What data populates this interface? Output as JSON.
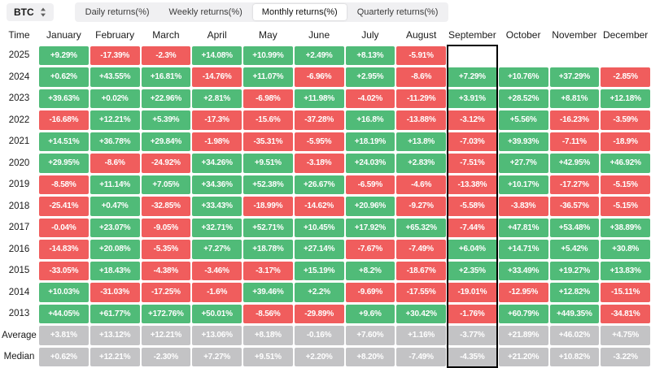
{
  "header": {
    "symbol": "BTC",
    "symbol_icon": "updown-arrows-icon",
    "tabs": [
      {
        "label": "Daily returns(%)",
        "active": false
      },
      {
        "label": "Weekly returns(%)",
        "active": false
      },
      {
        "label": "Monthly returns(%)",
        "active": true
      },
      {
        "label": "Quarterly returns(%)",
        "active": false
      }
    ]
  },
  "table": {
    "corner_label": "Time",
    "columns": [
      "January",
      "February",
      "March",
      "April",
      "May",
      "June",
      "July",
      "August",
      "September",
      "October",
      "November",
      "December"
    ],
    "highlighted_column": "September",
    "rows": [
      {
        "label": "2025",
        "values": [
          "+9.29%",
          "-17.39%",
          "-2.3%",
          "+14.08%",
          "+10.99%",
          "+2.49%",
          "+8.13%",
          "-5.91%",
          "",
          "",
          "",
          ""
        ]
      },
      {
        "label": "2024",
        "values": [
          "+0.62%",
          "+43.55%",
          "+16.81%",
          "-14.76%",
          "+11.07%",
          "-6.96%",
          "+2.95%",
          "-8.6%",
          "+7.29%",
          "+10.76%",
          "+37.29%",
          "-2.85%"
        ]
      },
      {
        "label": "2023",
        "values": [
          "+39.63%",
          "+0.02%",
          "+22.96%",
          "+2.81%",
          "-6.98%",
          "+11.98%",
          "-4.02%",
          "-11.29%",
          "+3.91%",
          "+28.52%",
          "+8.81%",
          "+12.18%"
        ]
      },
      {
        "label": "2022",
        "values": [
          "-16.68%",
          "+12.21%",
          "+5.39%",
          "-17.3%",
          "-15.6%",
          "-37.28%",
          "+16.8%",
          "-13.88%",
          "-3.12%",
          "+5.56%",
          "-16.23%",
          "-3.59%"
        ]
      },
      {
        "label": "2021",
        "values": [
          "+14.51%",
          "+36.78%",
          "+29.84%",
          "-1.98%",
          "-35.31%",
          "-5.95%",
          "+18.19%",
          "+13.8%",
          "-7.03%",
          "+39.93%",
          "-7.11%",
          "-18.9%"
        ]
      },
      {
        "label": "2020",
        "values": [
          "+29.95%",
          "-8.6%",
          "-24.92%",
          "+34.26%",
          "+9.51%",
          "-3.18%",
          "+24.03%",
          "+2.83%",
          "-7.51%",
          "+27.7%",
          "+42.95%",
          "+46.92%"
        ]
      },
      {
        "label": "2019",
        "values": [
          "-8.58%",
          "+11.14%",
          "+7.05%",
          "+34.36%",
          "+52.38%",
          "+26.67%",
          "-6.59%",
          "-4.6%",
          "-13.38%",
          "+10.17%",
          "-17.27%",
          "-5.15%"
        ]
      },
      {
        "label": "2018",
        "values": [
          "-25.41%",
          "+0.47%",
          "-32.85%",
          "+33.43%",
          "-18.99%",
          "-14.62%",
          "+20.96%",
          "-9.27%",
          "-5.58%",
          "-3.83%",
          "-36.57%",
          "-5.15%"
        ]
      },
      {
        "label": "2017",
        "values": [
          "-0.04%",
          "+23.07%",
          "-9.05%",
          "+32.71%",
          "+52.71%",
          "+10.45%",
          "+17.92%",
          "+65.32%",
          "-7.44%",
          "+47.81%",
          "+53.48%",
          "+38.89%"
        ]
      },
      {
        "label": "2016",
        "values": [
          "-14.83%",
          "+20.08%",
          "-5.35%",
          "+7.27%",
          "+18.78%",
          "+27.14%",
          "-7.67%",
          "-7.49%",
          "+6.04%",
          "+14.71%",
          "+5.42%",
          "+30.8%"
        ]
      },
      {
        "label": "2015",
        "values": [
          "-33.05%",
          "+18.43%",
          "-4.38%",
          "-3.46%",
          "-3.17%",
          "+15.19%",
          "+8.2%",
          "-18.67%",
          "+2.35%",
          "+33.49%",
          "+19.27%",
          "+13.83%"
        ]
      },
      {
        "label": "2014",
        "values": [
          "+10.03%",
          "-31.03%",
          "-17.25%",
          "-1.6%",
          "+39.46%",
          "+2.2%",
          "-9.69%",
          "-17.55%",
          "-19.01%",
          "-12.95%",
          "+12.82%",
          "-15.11%"
        ]
      },
      {
        "label": "2013",
        "values": [
          "+44.05%",
          "+61.77%",
          "+172.76%",
          "+50.01%",
          "-8.56%",
          "-29.89%",
          "+9.6%",
          "+30.42%",
          "-1.76%",
          "+60.79%",
          "+449.35%",
          "-34.81%"
        ]
      }
    ],
    "summary_rows": [
      {
        "label": "Average",
        "values": [
          "+3.81%",
          "+13.12%",
          "+12.21%",
          "+13.06%",
          "+8.18%",
          "-0.16%",
          "+7.60%",
          "+1.16%",
          "-3.77%",
          "+21.89%",
          "+46.02%",
          "+4.75%"
        ]
      },
      {
        "label": "Median",
        "values": [
          "+0.62%",
          "+12.21%",
          "-2.30%",
          "+7.27%",
          "+9.51%",
          "+2.20%",
          "+8.20%",
          "-7.49%",
          "-4.35%",
          "+21.20%",
          "+10.82%",
          "-3.22%"
        ]
      }
    ]
  },
  "colors": {
    "positive": "#50BB78",
    "negative": "#F05D5D",
    "summary": "#C3C3C5",
    "highlight_border": "#000000"
  }
}
